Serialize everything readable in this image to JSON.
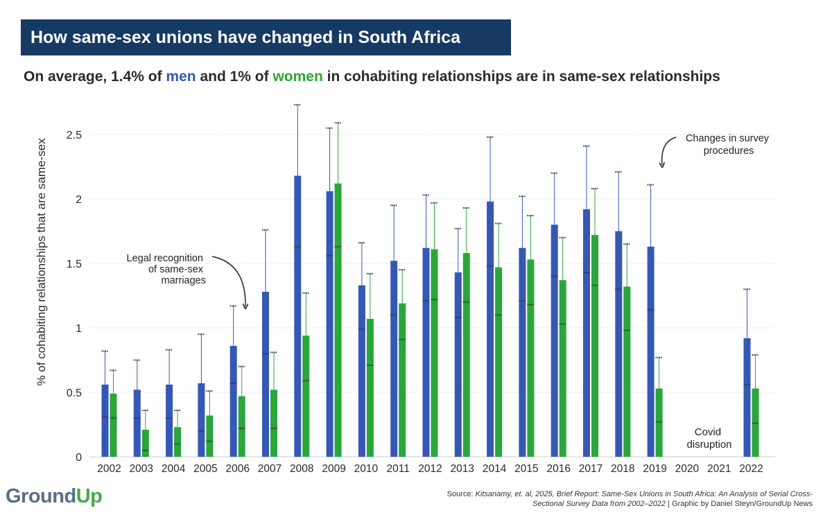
{
  "header": {
    "title": "How same-sex unions have changed in South Africa",
    "subtitle_parts": [
      "On average, 1.4% of ",
      "men",
      " and 1% of ",
      "women",
      " in cohabiting relationships are in same-sex relationships"
    ]
  },
  "colors": {
    "men": "#3558b5",
    "women": "#2aa63a",
    "banner": "#163a63",
    "grid": "#dddddd",
    "text": "#2a2a2a"
  },
  "brand": {
    "ground": "Ground",
    "up": "Up"
  },
  "source": {
    "prefix": "Source: ",
    "citation": "Kitsanamy, et. al, 2025, Brief Report: Same-Sex Unions in South Africa: An Analysis of Serial Cross-Sectional Survey Data from 2002–2022",
    "credit": " | Graphic by Daniel Steyn/GroundUp News"
  },
  "chart_data": {
    "type": "bar",
    "ylabel": "% of cohabiting relationships that are same-sex",
    "ylim": [
      0,
      2.75
    ],
    "yticks": [
      {
        "value": 0,
        "label": "0"
      },
      {
        "value": 0.5,
        "label": "0.5"
      },
      {
        "value": 1,
        "label": "1"
      },
      {
        "value": 1.5,
        "label": "1.5"
      },
      {
        "value": 2,
        "label": "2"
      },
      {
        "value": 2.5,
        "label": "2.5"
      }
    ],
    "grid": true,
    "categories": [
      "2002",
      "2003",
      "2004",
      "2005",
      "2006",
      "2007",
      "2008",
      "2009",
      "2010",
      "2011",
      "2012",
      "2013",
      "2014",
      "2015",
      "2016",
      "2017",
      "2018",
      "2019",
      "2020",
      "2021",
      "2022"
    ],
    "series": [
      {
        "key": "men",
        "values": [
          0.56,
          0.52,
          0.56,
          0.57,
          0.86,
          1.28,
          2.18,
          2.06,
          1.33,
          1.52,
          1.62,
          1.43,
          1.98,
          1.62,
          1.8,
          1.92,
          1.75,
          1.63,
          null,
          null,
          0.92
        ],
        "ci_low": [
          0.31,
          0.3,
          0.3,
          0.2,
          0.57,
          0.8,
          1.63,
          1.56,
          0.99,
          1.1,
          1.21,
          1.08,
          1.48,
          1.21,
          1.4,
          1.43,
          1.3,
          1.14,
          null,
          null,
          0.56
        ],
        "ci_high": [
          0.82,
          0.75,
          0.83,
          0.95,
          1.17,
          1.76,
          2.73,
          2.55,
          1.66,
          1.95,
          2.03,
          1.77,
          2.48,
          2.02,
          2.2,
          2.41,
          2.21,
          2.11,
          null,
          null,
          1.3
        ]
      },
      {
        "key": "women",
        "values": [
          0.49,
          0.21,
          0.23,
          0.32,
          0.47,
          0.52,
          0.94,
          2.12,
          1.07,
          1.19,
          1.61,
          1.58,
          1.47,
          1.53,
          1.37,
          1.72,
          1.32,
          0.53,
          null,
          null,
          0.53
        ],
        "ci_low": [
          0.3,
          0.05,
          0.1,
          0.12,
          0.22,
          0.22,
          0.59,
          1.63,
          0.71,
          0.91,
          1.22,
          1.2,
          1.1,
          1.18,
          1.03,
          1.33,
          0.98,
          0.27,
          null,
          null,
          0.26
        ],
        "ci_high": [
          0.67,
          0.36,
          0.36,
          0.51,
          0.7,
          0.81,
          1.27,
          2.59,
          1.42,
          1.45,
          1.97,
          1.93,
          1.81,
          1.87,
          1.7,
          2.08,
          1.65,
          0.77,
          null,
          null,
          0.79
        ]
      }
    ],
    "annotations": [
      {
        "lines": [
          "Legal recognition",
          "of same-sex",
          "marriages"
        ],
        "points_to": "2006"
      },
      {
        "lines": [
          "Changes in survey",
          "procedures"
        ],
        "points_to": "2019"
      },
      {
        "lines": [
          "Covid",
          "disruption"
        ],
        "at": "2020-2021"
      }
    ]
  }
}
